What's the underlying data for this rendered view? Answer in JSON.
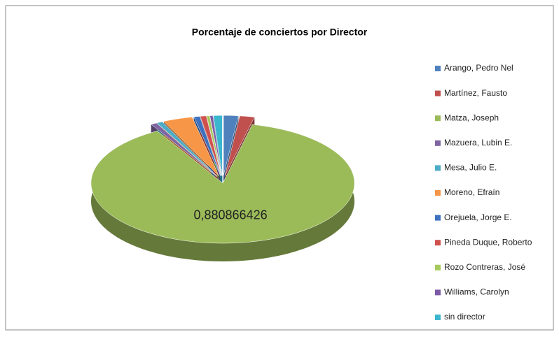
{
  "chart_data": {
    "type": "pie3d",
    "title": "Porcentaje de conciertos por Director",
    "categories": [
      "Arango, Pedro Nel",
      "Martínez, Fausto",
      "Matza, Joseph",
      "Mazuera, Lubin E.",
      "Mesa, Julio E.",
      "Moreno, Efraín",
      "Orejuela, Jorge E.",
      "Pineda Duque, Roberto",
      "Rozo Contreras, José",
      "Williams, Carolyn",
      "sin director"
    ],
    "values": [
      0.018,
      0.018,
      0.880866426,
      0.0072,
      0.0072,
      0.0361,
      0.0072,
      0.0072,
      0.0036,
      0.0036,
      0.0108
    ],
    "value_labels": [
      null,
      null,
      "0,880866426",
      null,
      null,
      null,
      null,
      null,
      null,
      null,
      null
    ],
    "colors": [
      "#4f81bd",
      "#c0504d",
      "#9bbb59",
      "#8064a2",
      "#4bacc6",
      "#f79646",
      "#3e72c0",
      "#d0504d",
      "#a5c95c",
      "#7e5aa6",
      "#3bb6cf"
    ],
    "legend": "right"
  }
}
